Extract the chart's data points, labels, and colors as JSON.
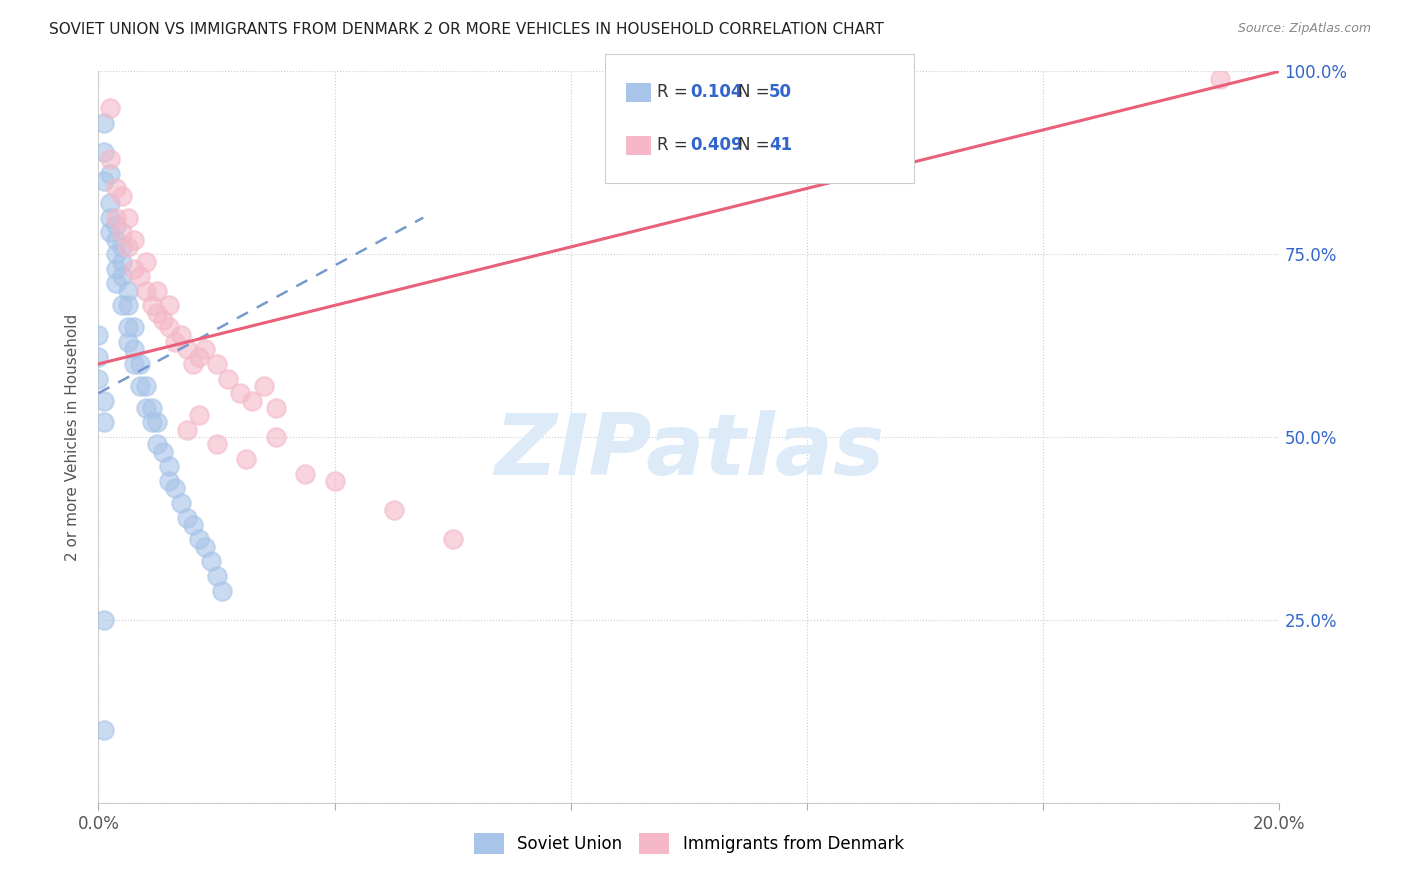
{
  "title": "SOVIET UNION VS IMMIGRANTS FROM DENMARK 2 OR MORE VEHICLES IN HOUSEHOLD CORRELATION CHART",
  "source": "Source: ZipAtlas.com",
  "ylabel": "2 or more Vehicles in Household",
  "xlim": [
    0.0,
    0.2
  ],
  "ylim": [
    0.0,
    1.0
  ],
  "soviet_color": "#a8c4e8",
  "denmark_color": "#f4b8c8",
  "soviet_line_color": "#7799cc",
  "denmark_line_color": "#e8607a",
  "watermark_text": "ZIPatlas",
  "watermark_color": "#ddeaf8",
  "background_color": "#ffffff",
  "soviet_x": [
    0.001,
    0.001,
    0.001,
    0.002,
    0.002,
    0.002,
    0.002,
    0.003,
    0.003,
    0.003,
    0.003,
    0.003,
    0.004,
    0.004,
    0.004,
    0.004,
    0.005,
    0.005,
    0.005,
    0.005,
    0.006,
    0.006,
    0.006,
    0.007,
    0.007,
    0.008,
    0.008,
    0.009,
    0.009,
    0.01,
    0.01,
    0.011,
    0.012,
    0.012,
    0.013,
    0.014,
    0.015,
    0.016,
    0.017,
    0.018,
    0.019,
    0.02,
    0.021,
    0.0,
    0.0,
    0.0,
    0.001,
    0.001,
    0.001,
    0.001
  ],
  "soviet_y": [
    0.93,
    0.89,
    0.85,
    0.82,
    0.78,
    0.86,
    0.8,
    0.77,
    0.75,
    0.73,
    0.71,
    0.79,
    0.76,
    0.74,
    0.72,
    0.68,
    0.7,
    0.68,
    0.65,
    0.63,
    0.65,
    0.62,
    0.6,
    0.6,
    0.57,
    0.57,
    0.54,
    0.54,
    0.52,
    0.52,
    0.49,
    0.48,
    0.46,
    0.44,
    0.43,
    0.41,
    0.39,
    0.38,
    0.36,
    0.35,
    0.33,
    0.31,
    0.29,
    0.64,
    0.61,
    0.58,
    0.55,
    0.52,
    0.25,
    0.1
  ],
  "denmark_x": [
    0.002,
    0.002,
    0.003,
    0.003,
    0.004,
    0.004,
    0.005,
    0.005,
    0.006,
    0.006,
    0.007,
    0.008,
    0.008,
    0.009,
    0.01,
    0.01,
    0.011,
    0.012,
    0.012,
    0.013,
    0.014,
    0.015,
    0.016,
    0.017,
    0.018,
    0.02,
    0.022,
    0.024,
    0.026,
    0.028,
    0.03,
    0.015,
    0.017,
    0.02,
    0.025,
    0.03,
    0.035,
    0.04,
    0.05,
    0.06,
    0.19
  ],
  "denmark_y": [
    0.95,
    0.88,
    0.84,
    0.8,
    0.83,
    0.78,
    0.8,
    0.76,
    0.77,
    0.73,
    0.72,
    0.74,
    0.7,
    0.68,
    0.7,
    0.67,
    0.66,
    0.65,
    0.68,
    0.63,
    0.64,
    0.62,
    0.6,
    0.61,
    0.62,
    0.6,
    0.58,
    0.56,
    0.55,
    0.57,
    0.54,
    0.51,
    0.53,
    0.49,
    0.47,
    0.5,
    0.45,
    0.44,
    0.4,
    0.36,
    0.99
  ],
  "blue_line_x0": 0.0,
  "blue_line_y0": 0.56,
  "blue_line_x1": 0.055,
  "blue_line_y1": 0.8,
  "pink_line_x0": 0.0,
  "pink_line_y0": 0.6,
  "pink_line_x1": 0.2,
  "pink_line_y1": 1.0
}
